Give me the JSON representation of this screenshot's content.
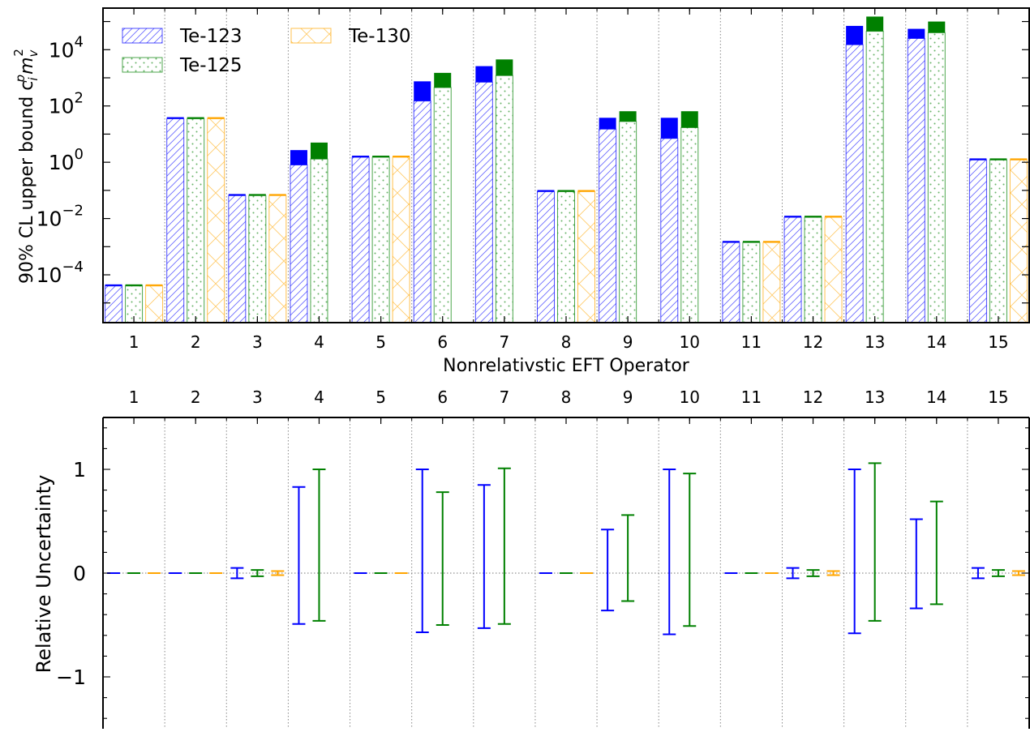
{
  "chart_data": [
    {
      "type": "bar",
      "subtype": "grouped bar chart with hatched bars and solid uncertainty caps",
      "xlabel": "Nonrelativstic EFT Operator",
      "ylabel": "90% CL upper bound c",
      "ylabel_sub": "i",
      "ylabel_sup": "p",
      "ylabel_tail": "m",
      "ylabel_tail_sub": "v",
      "ylabel_tail_sup": "2",
      "categories": [
        "1",
        "2",
        "3",
        "4",
        "5",
        "6",
        "7",
        "8",
        "9",
        "10",
        "11",
        "12",
        "13",
        "14",
        "15"
      ],
      "yscale": "log",
      "ylim": [
        2e-06,
        300000
      ],
      "yticks": [
        {
          "value": 0.0001,
          "base": "10",
          "exp": "−4"
        },
        {
          "value": 0.01,
          "base": "10",
          "exp": "−2"
        },
        {
          "value": 1,
          "base": "10",
          "exp": "0"
        },
        {
          "value": 100,
          "base": "10",
          "exp": "2"
        },
        {
          "value": 10000,
          "base": "10",
          "exp": "4"
        }
      ],
      "legend_position": "top-left",
      "series": [
        {
          "name": "Te-123",
          "color": "#0000ff",
          "hatch": "diagonal",
          "values": [
            4e-05,
            35,
            0.065,
            0.8,
            1.5,
            150,
            700,
            0.09,
            15,
            7,
            0.0014,
            0.011,
            15000,
            25000,
            1.2
          ],
          "upper": [
            4.2e-05,
            36,
            0.07,
            2.7,
            1.55,
            750,
            2600,
            0.095,
            38,
            38,
            0.0015,
            0.012,
            70000,
            55000,
            1.3
          ]
        },
        {
          "name": "Te-125",
          "color": "#008000",
          "hatch": "dots",
          "values": [
            4e-05,
            35,
            0.065,
            1.3,
            1.5,
            450,
            1200,
            0.09,
            28,
            17,
            0.0014,
            0.011,
            45000,
            40000,
            1.2
          ],
          "upper": [
            4.2e-05,
            36,
            0.068,
            5,
            1.55,
            1500,
            4500,
            0.093,
            65,
            65,
            0.0015,
            0.0115,
            150000,
            100000,
            1.25
          ]
        },
        {
          "name": "Te-130",
          "color": "#ffa500",
          "hatch": "cross",
          "values": [
            4e-05,
            35,
            0.065,
            null,
            1.5,
            null,
            null,
            0.09,
            null,
            null,
            0.0014,
            0.011,
            null,
            null,
            1.2
          ],
          "upper": [
            4.1e-05,
            35.5,
            0.066,
            null,
            1.52,
            null,
            null,
            0.091,
            null,
            null,
            0.00142,
            0.0112,
            null,
            null,
            1.22
          ]
        }
      ]
    },
    {
      "type": "errorbar",
      "ylabel": "Relative Uncertainty",
      "xlabel": "",
      "categories": [
        "1",
        "2",
        "3",
        "4",
        "5",
        "6",
        "7",
        "8",
        "9",
        "10",
        "11",
        "12",
        "13",
        "14",
        "15"
      ],
      "ylim": [
        -1.5,
        1.5
      ],
      "yticks": [
        {
          "value": 1,
          "label": "1"
        },
        {
          "value": 0,
          "label": "0"
        },
        {
          "value": -1,
          "label": "−1"
        }
      ],
      "series": [
        {
          "name": "Te-123",
          "color": "#0000ff",
          "upper": [
            0,
            0,
            0.05,
            0.83,
            0,
            1.0,
            0.85,
            0,
            0.42,
            1.0,
            0,
            0.05,
            1.0,
            0.52,
            0.05
          ],
          "lower": [
            0,
            0,
            -0.05,
            -0.49,
            0,
            -0.57,
            -0.53,
            0,
            -0.36,
            -0.59,
            0,
            -0.05,
            -0.58,
            -0.34,
            -0.05
          ]
        },
        {
          "name": "Te-125",
          "color": "#008000",
          "upper": [
            0,
            0,
            0.03,
            1.0,
            0,
            0.78,
            1.01,
            0,
            0.56,
            0.96,
            0,
            0.03,
            1.06,
            0.69,
            0.03
          ],
          "lower": [
            0,
            0,
            -0.03,
            -0.46,
            0,
            -0.5,
            -0.49,
            0,
            -0.27,
            -0.51,
            0,
            -0.03,
            -0.46,
            -0.3,
            -0.03
          ]
        },
        {
          "name": "Te-130",
          "color": "#ffa500",
          "upper": [
            0,
            0,
            0.02,
            null,
            0,
            null,
            null,
            0,
            null,
            null,
            0,
            0.02,
            null,
            null,
            0.02
          ],
          "lower": [
            0,
            0,
            -0.02,
            null,
            0,
            null,
            null,
            0,
            null,
            null,
            0,
            -0.02,
            null,
            null,
            -0.02
          ]
        }
      ]
    }
  ]
}
